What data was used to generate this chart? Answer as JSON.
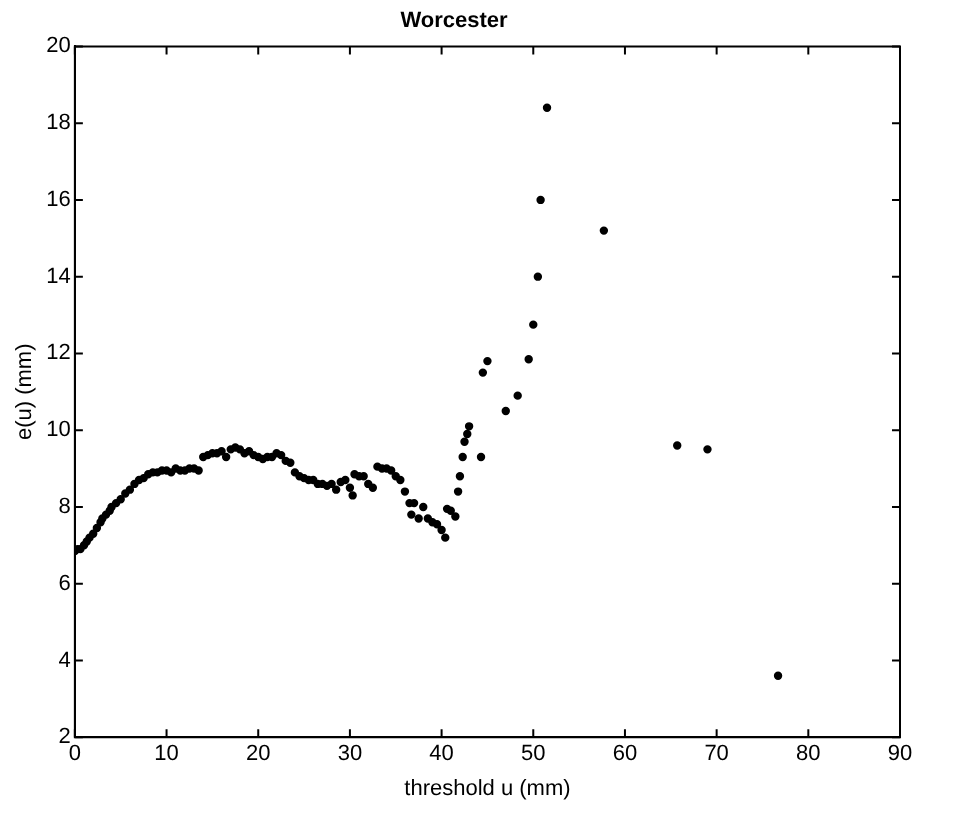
{
  "chart_data": {
    "type": "scatter",
    "title": "Worcester",
    "xlabel": "threshold u (mm)",
    "ylabel": "e(u) (mm)",
    "x": [
      0,
      0.3,
      0.6,
      1,
      1.3,
      1.6,
      2,
      2.4,
      2.8,
      3,
      3.4,
      3.8,
      4,
      4.5,
      5,
      5.5,
      6,
      6.5,
      7,
      7.5,
      8,
      8.5,
      9,
      9.5,
      10,
      10.5,
      11,
      11.5,
      12,
      12.5,
      13,
      13.5,
      14,
      14.5,
      15,
      15.5,
      16,
      16.5,
      17,
      17.5,
      18,
      18.5,
      19,
      19.5,
      20,
      20.5,
      21,
      21.5,
      22,
      22.5,
      23,
      23.5,
      24,
      24.5,
      25,
      25.5,
      26,
      26.5,
      27,
      27.5,
      28,
      28.5,
      29,
      29.5,
      30,
      30.3,
      30.5,
      31,
      31.5,
      32,
      32.5,
      33,
      33.5,
      34,
      34.5,
      35,
      35.5,
      36,
      36.5,
      36.7,
      37,
      37.5,
      38,
      38.5,
      39,
      39.5,
      40,
      40.4,
      40.6,
      41,
      41.5,
      41.8,
      42,
      42.3,
      42.5,
      42.8,
      43,
      44.3,
      44.5,
      45,
      47,
      48.3,
      49.5,
      50,
      50.5,
      50.8,
      51.5,
      57.7,
      65.7,
      69,
      76.7
    ],
    "values": [
      6.85,
      6.9,
      6.9,
      7.0,
      7.1,
      7.2,
      7.3,
      7.45,
      7.6,
      7.7,
      7.8,
      7.9,
      8.0,
      8.1,
      8.2,
      8.35,
      8.45,
      8.6,
      8.7,
      8.75,
      8.85,
      8.9,
      8.9,
      8.95,
      8.95,
      8.9,
      9.0,
      8.95,
      8.95,
      9.0,
      9.0,
      8.95,
      9.3,
      9.35,
      9.4,
      9.4,
      9.45,
      9.3,
      9.5,
      9.55,
      9.5,
      9.4,
      9.45,
      9.35,
      9.3,
      9.25,
      9.3,
      9.3,
      9.4,
      9.35,
      9.2,
      9.15,
      8.9,
      8.8,
      8.75,
      8.7,
      8.7,
      8.6,
      8.6,
      8.55,
      8.6,
      8.45,
      8.65,
      8.7,
      8.5,
      8.3,
      8.85,
      8.8,
      8.8,
      8.6,
      8.5,
      9.05,
      9.0,
      9.0,
      8.95,
      8.8,
      8.7,
      8.4,
      8.1,
      7.8,
      8.1,
      7.7,
      8.0,
      7.7,
      7.6,
      7.55,
      7.4,
      7.2,
      7.95,
      7.9,
      7.75,
      8.4,
      8.8,
      9.3,
      9.7,
      9.9,
      10.1,
      9.3,
      11.5,
      11.8,
      10.5,
      10.9,
      11.85,
      12.75,
      14.0,
      16.0,
      18.4,
      15.2,
      9.6,
      9.5,
      3.6
    ],
    "color": "#000000",
    "marker": "circle",
    "xlim": [
      0,
      90
    ],
    "xticks": [
      0,
      10,
      20,
      30,
      40,
      50,
      60,
      70,
      80,
      90
    ],
    "ylim": [
      2,
      20
    ],
    "yticks": [
      2,
      4,
      6,
      8,
      10,
      12,
      14,
      16,
      18,
      20
    ],
    "grid": false,
    "legend": false
  }
}
